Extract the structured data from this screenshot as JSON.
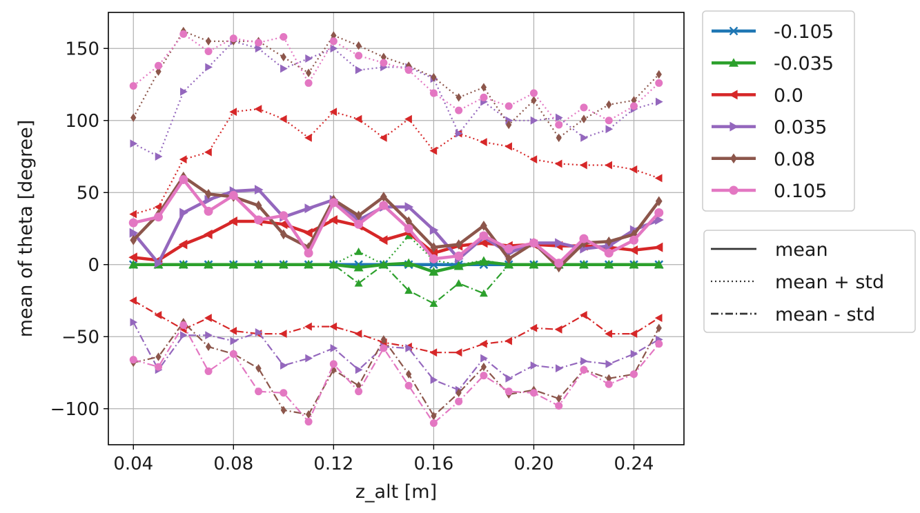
{
  "chart_data": {
    "type": "line",
    "title": "",
    "xlabel": "z_alt [m]",
    "ylabel": "mean of theta [degree]",
    "xlim": [
      0.03,
      0.26
    ],
    "ylim": [
      -125,
      175
    ],
    "x_ticks": [
      "0.04",
      "0.08",
      "0.12",
      "0.16",
      "0.20",
      "0.24"
    ],
    "y_ticks": [
      "−100",
      "−50",
      "0",
      "50",
      "100",
      "150"
    ],
    "grid": true,
    "legend_placement": "outside-right",
    "x": [
      0.04,
      0.05,
      0.06,
      0.07,
      0.08,
      0.09,
      0.1,
      0.11,
      0.12,
      0.13,
      0.14,
      0.15,
      0.16,
      0.17,
      0.18,
      0.19,
      0.2,
      0.21,
      0.22,
      0.23,
      0.24,
      0.25
    ],
    "series": [
      {
        "name": "-0.105",
        "color": "#1f77b4",
        "marker": "x",
        "mean": [
          0,
          0,
          0,
          0,
          0,
          0,
          0,
          0,
          0,
          0,
          0,
          0,
          0,
          0,
          0,
          0,
          0,
          0,
          0,
          0,
          0,
          0
        ],
        "mean_plus": [
          0,
          0,
          0,
          0,
          0,
          0,
          0,
          0,
          0,
          0,
          0,
          0,
          0,
          0,
          0,
          0,
          0,
          0,
          0,
          0,
          0,
          0
        ],
        "mean_minus": [
          0,
          0,
          0,
          0,
          0,
          0,
          0,
          0,
          0,
          0,
          0,
          0,
          0,
          0,
          0,
          0,
          0,
          0,
          0,
          0,
          0,
          0
        ]
      },
      {
        "name": "-0.035",
        "color": "#2ca02c",
        "marker": "triangle-up",
        "mean": [
          0,
          0,
          0,
          0,
          0,
          0,
          0,
          0,
          0,
          -2,
          0,
          1,
          -5,
          -1,
          2,
          0,
          0,
          0,
          0,
          0,
          0,
          0
        ],
        "mean_plus": [
          0,
          0,
          0,
          0,
          0,
          0,
          0,
          0,
          0,
          9,
          0,
          20,
          3,
          0,
          3,
          0,
          0,
          0,
          0,
          0,
          0,
          0
        ],
        "mean_minus": [
          0,
          0,
          0,
          0,
          0,
          0,
          0,
          0,
          0,
          -13,
          0,
          -18,
          -27,
          -13,
          -20,
          0,
          0,
          0,
          0,
          0,
          0,
          0
        ]
      },
      {
        "name": "0.0",
        "color": "#d62728",
        "marker": "triangle-left",
        "mean": [
          5,
          3,
          14,
          21,
          30,
          30,
          28,
          22,
          31,
          27,
          17,
          22,
          8,
          13,
          15,
          13,
          14,
          13,
          13,
          12,
          10,
          12
        ],
        "mean_plus": [
          35,
          40,
          73,
          78,
          106,
          108,
          101,
          88,
          106,
          101,
          88,
          101,
          79,
          91,
          85,
          82,
          73,
          70,
          69,
          69,
          66,
          60
        ],
        "mean_minus": [
          -25,
          -35,
          -45,
          -37,
          -46,
          -48,
          -48,
          -43,
          -43,
          -48,
          -54,
          -57,
          -61,
          -61,
          -55,
          -53,
          -44,
          -45,
          -35,
          -48,
          -48,
          -37
        ]
      },
      {
        "name": "0.035",
        "color": "#9467bd",
        "marker": "triangle-right",
        "mean": [
          22,
          1,
          36,
          45,
          51,
          52,
          33,
          39,
          45,
          31,
          40,
          40,
          24,
          4,
          19,
          8,
          15,
          15,
          11,
          13,
          24,
          31
        ],
        "mean_plus": [
          84,
          75,
          120,
          137,
          155,
          150,
          136,
          143,
          150,
          135,
          137,
          137,
          129,
          91,
          113,
          100,
          100,
          102,
          88,
          94,
          108,
          113
        ],
        "mean_minus": [
          -40,
          -73,
          -49,
          -49,
          -53,
          -47,
          -70,
          -65,
          -58,
          -73,
          -57,
          -58,
          -80,
          -87,
          -65,
          -79,
          -70,
          -72,
          -67,
          -69,
          -62,
          -52
        ]
      },
      {
        "name": "0.08",
        "color": "#8c564b",
        "marker": "diamond",
        "mean": [
          17,
          35,
          61,
          49,
          47,
          41,
          21,
          12,
          45,
          34,
          47,
          30,
          12,
          14,
          27,
          4,
          15,
          -2,
          15,
          16,
          21,
          44
        ],
        "mean_plus": [
          102,
          134,
          162,
          155,
          155,
          155,
          144,
          133,
          159,
          152,
          144,
          138,
          130,
          116,
          123,
          97,
          114,
          88,
          101,
          111,
          114,
          132
        ],
        "mean_minus": [
          -68,
          -64,
          -40,
          -57,
          -62,
          -72,
          -101,
          -104,
          -73,
          -84,
          -52,
          -76,
          -105,
          -89,
          -71,
          -90,
          -87,
          -93,
          -73,
          -79,
          -76,
          -44
        ]
      },
      {
        "name": "0.105",
        "color": "#e377c2",
        "marker": "circle",
        "mean": [
          29,
          33,
          59,
          37,
          48,
          31,
          34,
          8,
          43,
          28,
          41,
          25,
          4,
          6,
          20,
          11,
          15,
          1,
          18,
          8,
          17,
          36
        ],
        "mean_plus": [
          124,
          138,
          160,
          148,
          157,
          154,
          158,
          126,
          155,
          145,
          140,
          135,
          119,
          107,
          116,
          110,
          119,
          97,
          109,
          100,
          110,
          126
        ],
        "mean_minus": [
          -66,
          -71,
          -42,
          -74,
          -62,
          -88,
          -89,
          -109,
          -69,
          -88,
          -58,
          -84,
          -110,
          -95,
          -77,
          -88,
          -89,
          -98,
          -73,
          -83,
          -76,
          -55
        ]
      }
    ],
    "style_legend": [
      "mean",
      "mean + std",
      "mean - std"
    ]
  }
}
